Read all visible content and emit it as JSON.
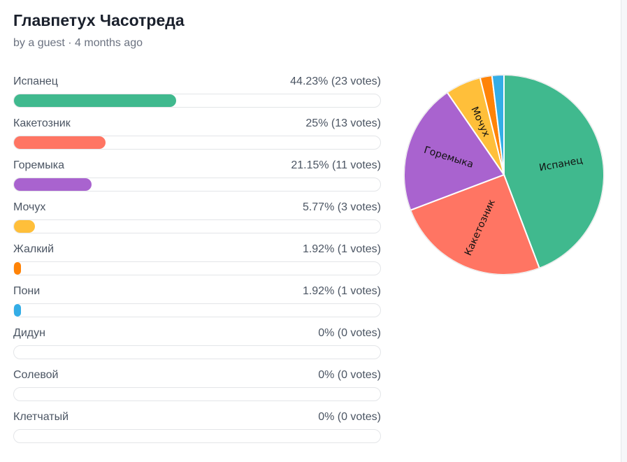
{
  "poll": {
    "title": "Главпетух Часотреда",
    "meta": "by a guest · 4 months ago"
  },
  "chart_data": {
    "type": "pie",
    "categories": [
      "Испанец",
      "Какетозник",
      "Горемыка",
      "Мочух",
      "Жалкий",
      "Пони",
      "Дидун",
      "Солевой",
      "Клетчатый"
    ],
    "values": [
      23,
      13,
      11,
      3,
      1,
      1,
      0,
      0,
      0
    ],
    "percents": [
      44.23,
      25,
      21.15,
      5.77,
      1.92,
      1.92,
      0,
      0,
      0
    ],
    "stat_labels": [
      "44.23% (23 votes)",
      "25% (13 votes)",
      "21.15% (11 votes)",
      "5.77% (3 votes)",
      "1.92% (1 votes)",
      "1.92% (1 votes)",
      "0% (0 votes)",
      "0% (0 votes)",
      "0% (0 votes)"
    ],
    "colors": [
      "#40b98e",
      "#ff7563",
      "#a963cf",
      "#ffbf3a",
      "#ff8307",
      "#34ade6",
      "#8c8c8c",
      "#8c8c8c",
      "#8c8c8c"
    ],
    "slice_labels": [
      "Испанец",
      "Какетозник",
      "Горемыка",
      "Мочух",
      "",
      "",
      "",
      "",
      ""
    ]
  }
}
